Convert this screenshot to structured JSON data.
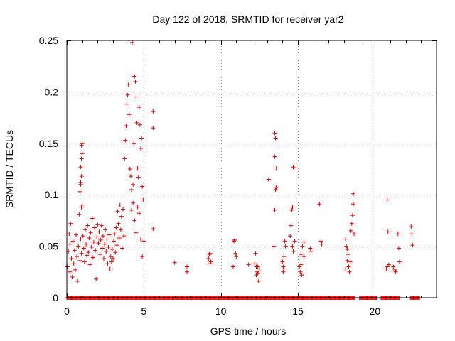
{
  "chart_data": {
    "type": "scatter",
    "title": "Day 122 of 2018, SRMTID for receiver yar2",
    "xlabel": "GPS time / hours",
    "ylabel": "SRMTID / TECUs",
    "xlim": [
      0,
      24
    ],
    "ylim": [
      0,
      0.25
    ],
    "xticks": [
      0,
      5,
      10,
      15,
      20
    ],
    "xtick_labels": [
      "0",
      "5",
      "10",
      "15",
      "20"
    ],
    "yticks": [
      0,
      0.05,
      0.1,
      0.15,
      0.2,
      0.25
    ],
    "ytick_labels": [
      "0",
      "0.05",
      "0.1",
      "0.15",
      "0.2",
      "0.25"
    ],
    "grid": true,
    "marker": "plus",
    "color": "#e00000",
    "zero_band_x": [
      [
        0,
        18.7
      ],
      [
        19.0,
        20.1
      ],
      [
        20.4,
        21.6
      ],
      [
        22.3,
        22.9
      ]
    ],
    "series": [
      {
        "name": "SRMTID",
        "points": [
          [
            0.05,
            0.03
          ],
          [
            0.1,
            0.045
          ],
          [
            0.15,
            0.062
          ],
          [
            0.2,
            0.052
          ],
          [
            0.2,
            0.025
          ],
          [
            0.25,
            0.072
          ],
          [
            0.3,
            0.038
          ],
          [
            0.35,
            0.02
          ],
          [
            0.4,
            0.055
          ],
          [
            0.45,
            0.033
          ],
          [
            0.5,
            0.046
          ],
          [
            0.55,
            0.027
          ],
          [
            0.6,
            0.061
          ],
          [
            0.65,
            0.04
          ],
          [
            0.7,
            0.016
          ],
          [
            0.75,
            0.05
          ],
          [
            0.8,
            0.081
          ],
          [
            0.85,
            0.036
          ],
          [
            0.9,
            0.057
          ],
          [
            0.95,
            0.043
          ],
          [
            0.85,
            0.103
          ],
          [
            0.9,
            0.11
          ],
          [
            0.95,
            0.118
          ],
          [
            0.9,
            0.127
          ],
          [
            0.95,
            0.135
          ],
          [
            1.0,
            0.14
          ],
          [
            0.95,
            0.148
          ],
          [
            1.0,
            0.15
          ],
          [
            0.95,
            0.088
          ],
          [
            1.0,
            0.09
          ],
          [
            0.9,
            0.112
          ],
          [
            1.05,
            0.06
          ],
          [
            1.1,
            0.048
          ],
          [
            1.15,
            0.035
          ],
          [
            1.2,
            0.066
          ],
          [
            1.25,
            0.052
          ],
          [
            1.3,
            0.041
          ],
          [
            1.35,
            0.07
          ],
          [
            1.4,
            0.044
          ],
          [
            1.45,
            0.058
          ],
          [
            1.5,
            0.032
          ],
          [
            1.55,
            0.063
          ],
          [
            1.6,
            0.049
          ],
          [
            1.65,
            0.077
          ],
          [
            1.7,
            0.039
          ],
          [
            1.75,
            0.054
          ],
          [
            1.8,
            0.068
          ],
          [
            1.85,
            0.046
          ],
          [
            1.9,
            0.018
          ],
          [
            1.95,
            0.059
          ],
          [
            2.0,
            0.071
          ],
          [
            2.05,
            0.053
          ],
          [
            2.1,
            0.064
          ],
          [
            2.15,
            0.042
          ],
          [
            2.2,
            0.056
          ],
          [
            2.25,
            0.07
          ],
          [
            2.3,
            0.048
          ],
          [
            2.35,
            0.06
          ],
          [
            2.4,
            0.038
          ],
          [
            2.45,
            0.052
          ],
          [
            2.5,
            0.066
          ],
          [
            2.55,
            0.045
          ],
          [
            2.6,
            0.057
          ],
          [
            2.65,
            0.033
          ],
          [
            2.7,
            0.049
          ],
          [
            2.75,
            0.061
          ],
          [
            2.8,
            0.028
          ],
          [
            2.85,
            0.04
          ],
          [
            2.9,
            0.035
          ],
          [
            2.95,
            0.047
          ],
          [
            3.0,
            0.038
          ],
          [
            3.05,
            0.055
          ],
          [
            3.1,
            0.062
          ],
          [
            3.15,
            0.044
          ],
          [
            3.2,
            0.068
          ],
          [
            3.25,
            0.051
          ],
          [
            3.3,
            0.084
          ],
          [
            3.35,
            0.072
          ],
          [
            3.4,
            0.058
          ],
          [
            3.45,
            0.09
          ],
          [
            3.5,
            0.066
          ],
          [
            3.55,
            0.079
          ],
          [
            3.6,
            0.048
          ],
          [
            3.65,
            0.086
          ],
          [
            3.7,
            0.06
          ],
          [
            3.75,
            0.135
          ],
          [
            3.8,
            0.153
          ],
          [
            3.85,
            0.167
          ],
          [
            3.9,
            0.188
          ],
          [
            3.95,
            0.197
          ],
          [
            4.0,
            0.207
          ],
          [
            4.05,
            0.178
          ],
          [
            4.1,
            0.125
          ],
          [
            4.15,
            0.118
          ],
          [
            4.2,
            0.105
          ],
          [
            4.25,
            0.248
          ],
          [
            4.3,
            0.11
          ],
          [
            4.35,
            0.15
          ],
          [
            4.4,
            0.215
          ],
          [
            4.45,
            0.21
          ],
          [
            4.5,
            0.195
          ],
          [
            4.55,
            0.17
          ],
          [
            4.6,
            0.126
          ],
          [
            4.65,
            0.117
          ],
          [
            4.7,
            0.185
          ],
          [
            4.75,
            0.168
          ],
          [
            4.8,
            0.145
          ],
          [
            4.85,
            0.155
          ],
          [
            4.9,
            0.108
          ],
          [
            4.95,
            0.095
          ],
          [
            4.2,
            0.085
          ],
          [
            4.3,
            0.092
          ],
          [
            4.4,
            0.075
          ],
          [
            4.5,
            0.063
          ],
          [
            4.6,
            0.088
          ],
          [
            4.7,
            0.082
          ],
          [
            4.8,
            0.057
          ],
          [
            4.9,
            0.04
          ],
          [
            5.0,
            0.055
          ],
          [
            5.6,
            0.181
          ],
          [
            5.6,
            0.165
          ],
          [
            5.6,
            0.067
          ],
          [
            7.0,
            0.034
          ],
          [
            7.8,
            0.025
          ],
          [
            7.8,
            0.03
          ],
          [
            9.2,
            0.038
          ],
          [
            9.25,
            0.042
          ],
          [
            9.3,
            0.033
          ],
          [
            9.35,
            0.035
          ],
          [
            9.3,
            0.043
          ],
          [
            10.8,
            0.03
          ],
          [
            10.85,
            0.055
          ],
          [
            10.9,
            0.056
          ],
          [
            10.95,
            0.043
          ],
          [
            11.0,
            0.04
          ],
          [
            11.8,
            0.032
          ],
          [
            12.2,
            0.033
          ],
          [
            12.25,
            0.043
          ],
          [
            12.3,
            0.03
          ],
          [
            12.35,
            0.025
          ],
          [
            12.4,
            0.03
          ],
          [
            12.45,
            0.016
          ],
          [
            12.5,
            0.028
          ],
          [
            12.3,
            0.022
          ],
          [
            12.4,
            0.024
          ],
          [
            13.1,
            0.115
          ],
          [
            13.5,
            0.16
          ],
          [
            13.55,
            0.155
          ],
          [
            13.5,
            0.137
          ],
          [
            13.6,
            0.126
          ],
          [
            13.55,
            0.105
          ],
          [
            13.6,
            0.107
          ],
          [
            13.5,
            0.085
          ],
          [
            13.45,
            0.05
          ],
          [
            14.0,
            0.035
          ],
          [
            14.05,
            0.03
          ],
          [
            14.1,
            0.028
          ],
          [
            14.1,
            0.04
          ],
          [
            14.15,
            0.055
          ],
          [
            14.2,
            0.05
          ],
          [
            14.05,
            0.025
          ],
          [
            14.5,
            0.06
          ],
          [
            14.55,
            0.07
          ],
          [
            14.6,
            0.085
          ],
          [
            14.65,
            0.088
          ],
          [
            14.7,
            0.127
          ],
          [
            14.75,
            0.126
          ],
          [
            14.65,
            0.05
          ],
          [
            14.7,
            0.045
          ],
          [
            14.8,
            0.055
          ],
          [
            15.1,
            0.03
          ],
          [
            15.15,
            0.025
          ],
          [
            15.2,
            0.032
          ],
          [
            15.25,
            0.022
          ],
          [
            15.3,
            0.05
          ],
          [
            15.4,
            0.054
          ],
          [
            15.2,
            0.042
          ],
          [
            15.4,
            0.04
          ],
          [
            15.8,
            0.048
          ],
          [
            15.85,
            0.045
          ],
          [
            16.4,
            0.091
          ],
          [
            16.5,
            0.055
          ],
          [
            16.55,
            0.052
          ],
          [
            18.1,
            0.057
          ],
          [
            18.15,
            0.05
          ],
          [
            18.2,
            0.047
          ],
          [
            18.25,
            0.042
          ],
          [
            18.3,
            0.03
          ],
          [
            18.35,
            0.025
          ],
          [
            18.4,
            0.035
          ],
          [
            18.45,
            0.065
          ],
          [
            18.5,
            0.072
          ],
          [
            18.55,
            0.08
          ],
          [
            18.6,
            0.091
          ],
          [
            18.6,
            0.101
          ],
          [
            18.65,
            0.062
          ],
          [
            18.1,
            0.028
          ],
          [
            18.2,
            0.036
          ],
          [
            20.8,
            0.095
          ],
          [
            20.85,
            0.064
          ],
          [
            20.8,
            0.03
          ],
          [
            20.9,
            0.032
          ],
          [
            20.75,
            0.028
          ],
          [
            21.2,
            0.03
          ],
          [
            21.3,
            0.027
          ],
          [
            21.35,
            0.025
          ],
          [
            21.5,
            0.062
          ],
          [
            21.55,
            0.048
          ],
          [
            21.6,
            0.035
          ],
          [
            22.35,
            0.069
          ],
          [
            22.4,
            0.062
          ],
          [
            22.45,
            0.051
          ]
        ]
      }
    ]
  }
}
